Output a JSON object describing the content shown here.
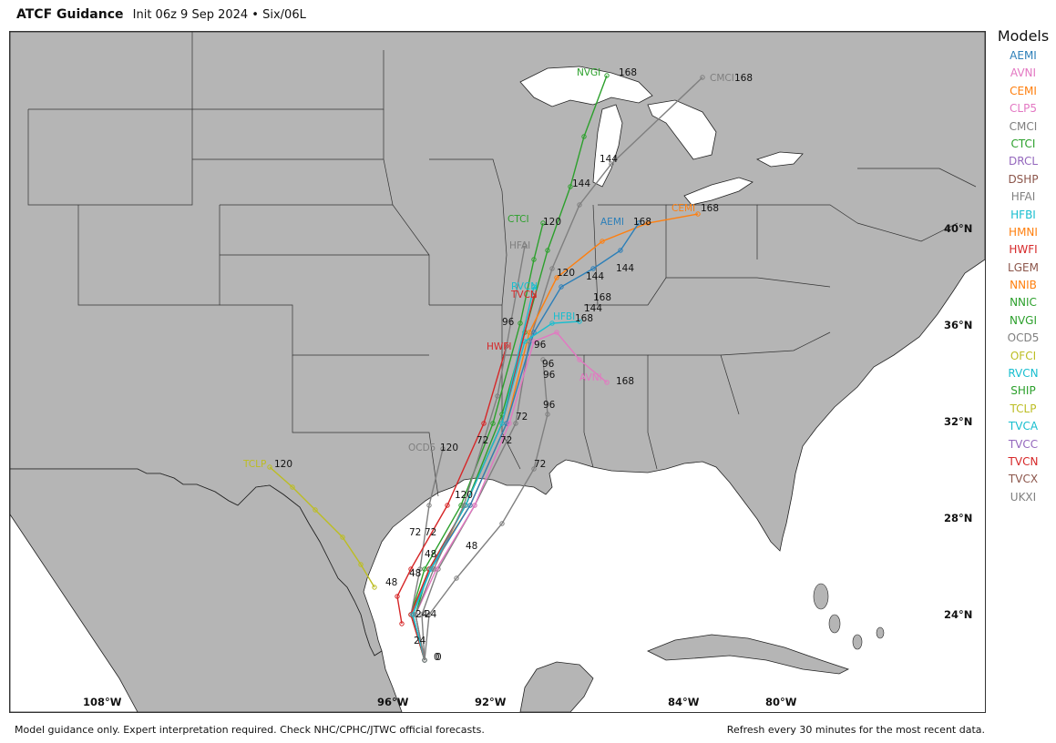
{
  "header": {
    "title": "ATCF Guidance",
    "subtitle": "Init 06z 9 Sep 2024 • Six/06L"
  },
  "legend": {
    "title": "Models",
    "items": [
      {
        "name": "AEMI",
        "color": "#2c7fb8"
      },
      {
        "name": "AVNI",
        "color": "#e377c2"
      },
      {
        "name": "CEMI",
        "color": "#ff7f0e"
      },
      {
        "name": "CLP5",
        "color": "#e377c2"
      },
      {
        "name": "CMCI",
        "color": "#7f7f7f"
      },
      {
        "name": "CTCI",
        "color": "#2ca02c"
      },
      {
        "name": "DRCL",
        "color": "#9467bd"
      },
      {
        "name": "DSHP",
        "color": "#8c564b"
      },
      {
        "name": "HFAI",
        "color": "#7f7f7f"
      },
      {
        "name": "HFBI",
        "color": "#17becf"
      },
      {
        "name": "HMNI",
        "color": "#ff7f0e"
      },
      {
        "name": "HWFI",
        "color": "#d62728"
      },
      {
        "name": "LGEM",
        "color": "#8c564b"
      },
      {
        "name": "NNIB",
        "color": "#ff7f0e"
      },
      {
        "name": "NNIC",
        "color": "#2ca02c"
      },
      {
        "name": "NVGI",
        "color": "#2ca02c"
      },
      {
        "name": "OCD5",
        "color": "#7f7f7f"
      },
      {
        "name": "OFCI",
        "color": "#bcbd22"
      },
      {
        "name": "RVCN",
        "color": "#17becf"
      },
      {
        "name": "SHIP",
        "color": "#2ca02c"
      },
      {
        "name": "TCLP",
        "color": "#bcbd22"
      },
      {
        "name": "TVCA",
        "color": "#17becf"
      },
      {
        "name": "TVCC",
        "color": "#9467bd"
      },
      {
        "name": "TVCN",
        "color": "#d62728"
      },
      {
        "name": "TVCX",
        "color": "#8c564b"
      },
      {
        "name": "UKXI",
        "color": "#7f7f7f"
      }
    ]
  },
  "map": {
    "land_color": "#b5b5b5",
    "water_color": "#ffffff",
    "border_color": "#333333",
    "latitudes": [
      "40°N",
      "36°N",
      "32°N",
      "28°N",
      "24°N"
    ],
    "longitudes": [
      "108°W",
      "96°W",
      "92°W",
      "84°W",
      "80°W"
    ],
    "hour_labels": [
      "0",
      "0",
      "24",
      "24",
      "24",
      "48",
      "48",
      "48",
      "48",
      "72",
      "72",
      "72",
      "72",
      "72",
      "72",
      "96",
      "96",
      "96",
      "96",
      "96",
      "120",
      "120",
      "120",
      "120",
      "120",
      "144",
      "144",
      "144",
      "144",
      "144",
      "168",
      "168",
      "168",
      "168",
      "168",
      "168",
      "168"
    ],
    "tracks": [
      {
        "model": "NVGI",
        "color": "#2ca02c",
        "end_label": "NVGI",
        "end_hour": "168"
      },
      {
        "model": "CMCI",
        "color": "#7f7f7f",
        "end_label": "CMCI",
        "end_hour": "168"
      },
      {
        "model": "CEMI",
        "color": "#ff7f0e",
        "end_label": "CEMI",
        "end_hour": "168"
      },
      {
        "model": "AEMI",
        "color": "#2c7fb8",
        "end_label": "AEMI",
        "end_hour": "168"
      },
      {
        "model": "CTCI",
        "color": "#2ca02c",
        "end_label": "CTCI",
        "end_hour": "120"
      },
      {
        "model": "AVNI",
        "color": "#e377c2",
        "end_label": "AVNI",
        "end_hour": "168"
      },
      {
        "model": "HFBI",
        "color": "#17becf",
        "end_label": "HFBI",
        "end_hour": "144"
      },
      {
        "model": "TCLP",
        "color": "#bcbd22",
        "end_label": "TCLP",
        "end_hour": "120"
      },
      {
        "model": "OCD5",
        "color": "#7f7f7f",
        "end_label": "OCD5",
        "end_hour": "120"
      },
      {
        "model": "HWFI",
        "color": "#d62728",
        "end_label": "HWFI",
        "end_hour": "96"
      },
      {
        "model": "TVCN",
        "color": "#d62728",
        "end_label": "TVCN",
        "end_hour": "120"
      },
      {
        "model": "RVCN",
        "color": "#17becf",
        "end_label": "RVCN",
        "end_hour": "120"
      },
      {
        "model": "HFAI",
        "color": "#7f7f7f",
        "end_label": "HFAI",
        "end_hour": "120"
      },
      {
        "model": "UKXI",
        "color": "#7f7f7f",
        "end_label": "",
        "end_hour": "96"
      }
    ]
  },
  "footer": {
    "left": "Model guidance only. Expert interpretation required. Check NHC/CPHC/JTWC official forecasts.",
    "right": "Refresh every 30 minutes for the most recent data."
  }
}
